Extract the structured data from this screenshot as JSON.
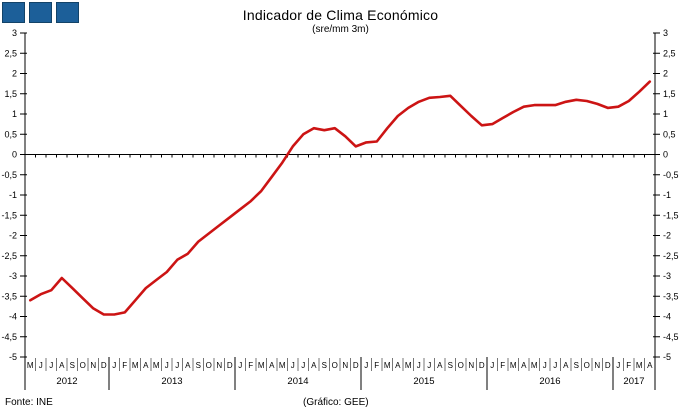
{
  "logo": {
    "name": "three-squares-logo",
    "square_count": 3,
    "color": "#1c5f99",
    "border_color": "#134368"
  },
  "header": {
    "title": "Indicador de Clima Económico",
    "subtitle": "(sre/mm 3m)"
  },
  "footer": {
    "source": "Fonte: INE",
    "credit": "(Gráfico: GEE)"
  },
  "chart_data": {
    "type": "line",
    "title": "Indicador de Clima Económico",
    "subtitle": "(sre/mm 3m)",
    "ylim": [
      -5,
      3
    ],
    "ytick_step": 0.5,
    "ytick_labels": [
      "3",
      "2,5",
      "2",
      "1,5",
      "1",
      "0,5",
      "0",
      "-0,5",
      "-1",
      "-1,5",
      "-2",
      "-2,5",
      "-3",
      "-3,5",
      "-4",
      "-4,5",
      "-5"
    ],
    "grid": "off",
    "legend": "none",
    "line_color": "#cc1414",
    "axis_color": "#000000",
    "month_tick_color": "#777777",
    "years": [
      {
        "label": "2012",
        "months": [
          "M",
          "J",
          "J",
          "A",
          "S",
          "O",
          "N",
          "D"
        ]
      },
      {
        "label": "2013",
        "months": [
          "J",
          "F",
          "M",
          "A",
          "M",
          "J",
          "J",
          "A",
          "S",
          "O",
          "N",
          "D"
        ]
      },
      {
        "label": "2014",
        "months": [
          "J",
          "F",
          "M",
          "A",
          "M",
          "J",
          "J",
          "A",
          "S",
          "O",
          "N",
          "D"
        ]
      },
      {
        "label": "2015",
        "months": [
          "J",
          "F",
          "M",
          "A",
          "M",
          "J",
          "J",
          "A",
          "S",
          "O",
          "N",
          "D"
        ]
      },
      {
        "label": "2016",
        "months": [
          "J",
          "F",
          "M",
          "A",
          "M",
          "J",
          "J",
          "A",
          "S",
          "O",
          "N",
          "D"
        ]
      },
      {
        "label": "2017",
        "months": [
          "J",
          "F",
          "M",
          "A"
        ]
      }
    ],
    "values": [
      -3.6,
      -3.45,
      -3.35,
      -3.05,
      -3.3,
      -3.55,
      -3.8,
      -3.95,
      -3.95,
      -3.9,
      -3.6,
      -3.3,
      -3.1,
      -2.9,
      -2.6,
      -2.45,
      -2.15,
      -1.95,
      -1.75,
      -1.55,
      -1.35,
      -1.15,
      -0.9,
      -0.55,
      -0.2,
      0.2,
      0.5,
      0.65,
      0.6,
      0.65,
      0.45,
      0.2,
      0.3,
      0.32,
      0.65,
      0.95,
      1.15,
      1.3,
      1.4,
      1.42,
      1.45,
      1.2,
      0.95,
      0.72,
      0.75,
      0.9,
      1.05,
      1.18,
      1.22,
      1.22,
      1.22,
      1.3,
      1.35,
      1.32,
      1.25,
      1.15,
      1.18,
      1.32,
      1.55,
      1.8
    ]
  }
}
